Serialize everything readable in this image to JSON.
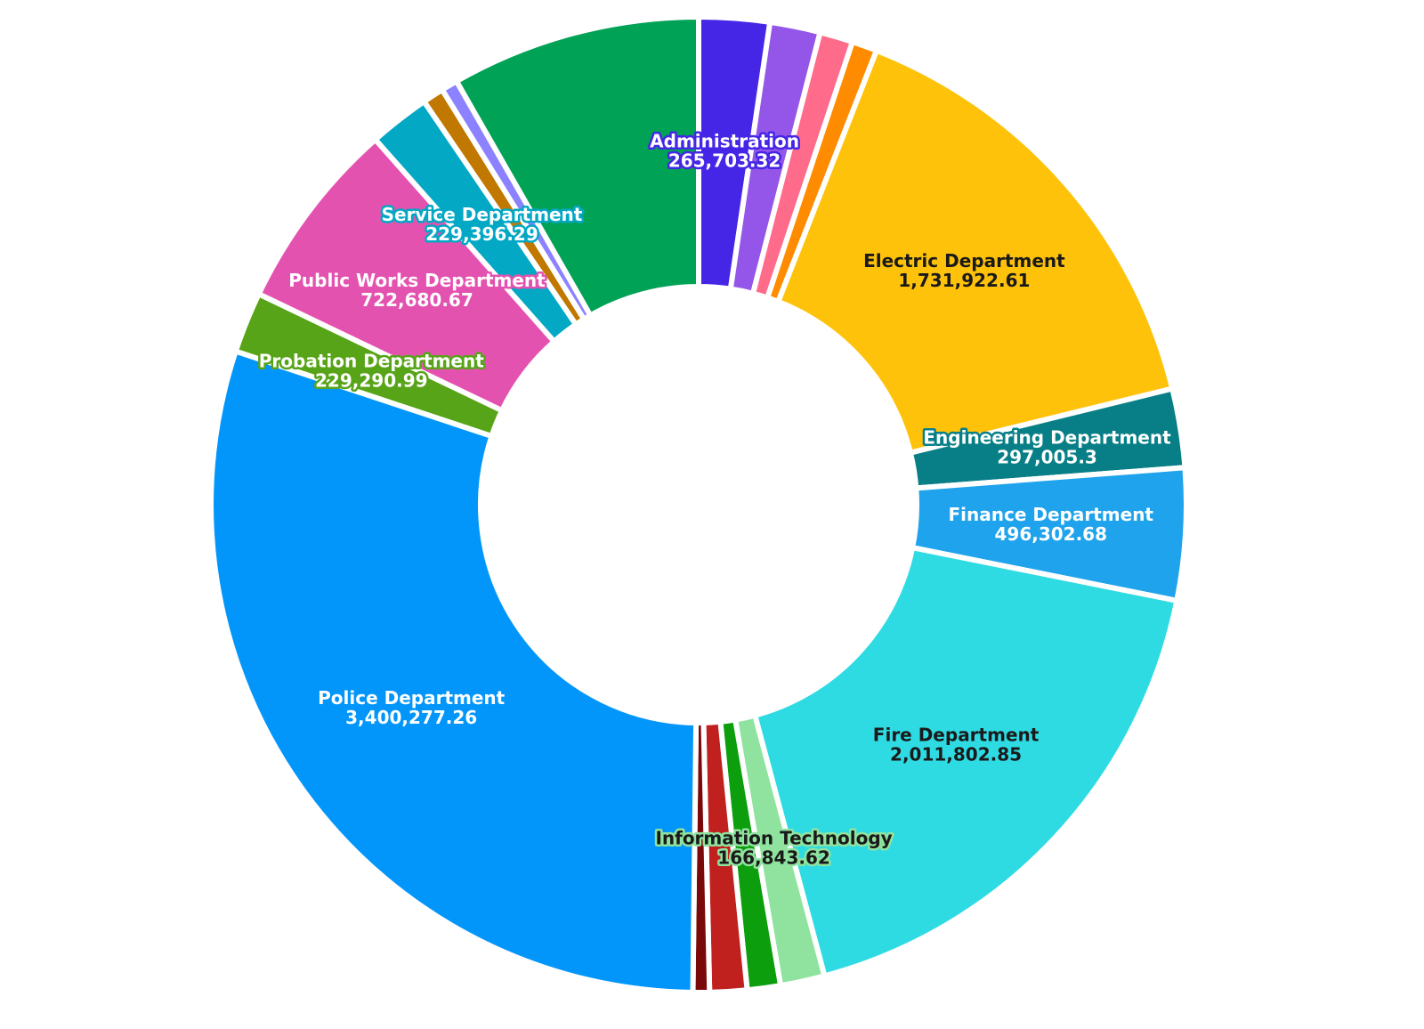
{
  "chart_data": {
    "type": "pie",
    "donut": true,
    "start": "12 o'clock",
    "direction": "clockwise",
    "slices": [
      {
        "label": "Administration",
        "value": 265703.32,
        "value_text": "265,703.32",
        "color": "#4526e6",
        "show_label": true,
        "label_color": "#ffffff",
        "halo": "#4526e6"
      },
      {
        "label": "",
        "value": 190000,
        "color": "#9456e8",
        "show_label": false
      },
      {
        "label": "",
        "value": 125000,
        "color": "#ff6b8a",
        "show_label": false
      },
      {
        "label": "",
        "value": 95000,
        "color": "#ff8c00",
        "show_label": false
      },
      {
        "label": "Electric Department",
        "value": 1731922.61,
        "value_text": "1,731,922.61",
        "color": "#ffc20a",
        "show_label": true,
        "label_color": "#1a1a1a",
        "halo": "#ffc20a"
      },
      {
        "label": "Engineering Department",
        "value": 297005.3,
        "value_text": "297,005.3",
        "color": "#087f87",
        "show_label": true,
        "label_color": "#ffffff",
        "halo": "#087f87"
      },
      {
        "label": "Finance Department",
        "value": 496302.68,
        "value_text": "496,302.68",
        "color": "#1fa3ec",
        "show_label": true,
        "label_color": "#ffffff",
        "halo": "#1fa3ec"
      },
      {
        "label": "Fire Department",
        "value": 2011802.85,
        "value_text": "2,011,802.85",
        "color": "#2fdbe3",
        "show_label": true,
        "label_color": "#1a1a1a",
        "halo": "#2fdbe3"
      },
      {
        "label": "Information Technology",
        "value": 166843.62,
        "value_text": "166,843.62",
        "color": "#8fe39f",
        "show_label": true,
        "label_color": "#1a1a1a",
        "halo": "#8fe39f"
      },
      {
        "label": "",
        "value": 125000,
        "color": "#0c9e0c",
        "show_label": false
      },
      {
        "label": "",
        "value": 140000,
        "color": "#c0201e",
        "show_label": false
      },
      {
        "label": "",
        "value": 62000,
        "color": "#7a0a0a",
        "show_label": false
      },
      {
        "label": "Police Department",
        "value": 3400277.26,
        "value_text": "3,400,277.26",
        "color": "#0396fa",
        "show_label": true,
        "label_color": "#ffffff",
        "halo": "#0396fa"
      },
      {
        "label": "Probation Department",
        "value": 229290.99,
        "value_text": "229,290.99",
        "color": "#58a418",
        "show_label": true,
        "label_color": "#ffffff",
        "halo": "#58a418"
      },
      {
        "label": "Public Works Department",
        "value": 722680.67,
        "value_text": "722,680.67",
        "color": "#e452b0",
        "show_label": true,
        "label_color": "#ffffff",
        "halo": "#e452b0"
      },
      {
        "label": "Service Department",
        "value": 229396.29,
        "value_text": "229,396.29",
        "color": "#03a8c4",
        "show_label": true,
        "label_color": "#ffffff",
        "halo": "#03a8c4"
      },
      {
        "label": "",
        "value": 80000,
        "color": "#c07800",
        "show_label": false
      },
      {
        "label": "",
        "value": 62000,
        "color": "#8c82ff",
        "show_label": false
      },
      {
        "label": "",
        "value": 940000,
        "color": "#00a256",
        "show_label": false
      }
    ]
  }
}
